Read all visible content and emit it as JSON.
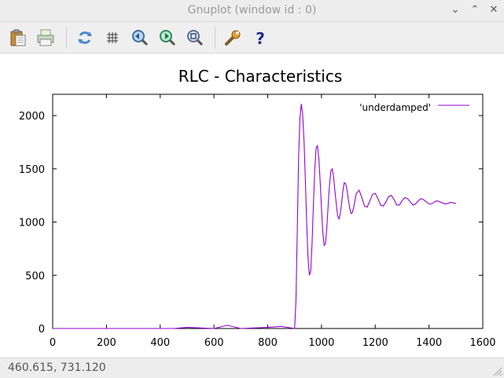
{
  "window": {
    "title": "Gnuplot (window id : 0)",
    "minimize_glyph": "⌄",
    "maximize_glyph": "⌃",
    "close_glyph": "✕"
  },
  "toolbar": {
    "icons": [
      "copy-clipboard-icon",
      "print-icon",
      "replot-icon",
      "grid-icon",
      "zoom-previous-icon",
      "zoom-next-icon",
      "autoscale-icon",
      "settings-icon",
      "help-icon"
    ],
    "help_glyph": "?"
  },
  "status": {
    "coords": "460.615,  731.120"
  },
  "colors": {
    "series": "#9400d3",
    "help": "#1d2c8f"
  },
  "chart_data": {
    "type": "line",
    "title": "RLC - Characteristics",
    "xlabel": "",
    "ylabel": "",
    "xlim": [
      0,
      1600
    ],
    "ylim": [
      0,
      2200
    ],
    "xticks": [
      0,
      200,
      400,
      600,
      800,
      1000,
      1200,
      1400,
      1600
    ],
    "yticks": [
      0,
      500,
      1000,
      1500,
      2000
    ],
    "grid": false,
    "legend_position": "top-right",
    "series": [
      {
        "name": "'underdamped'",
        "x": [
          0,
          100,
          200,
          300,
          400,
          450,
          500,
          600,
          650,
          700,
          800,
          850,
          900,
          905,
          910,
          915,
          920,
          925,
          930,
          935,
          940,
          945,
          950,
          955,
          960,
          965,
          970,
          975,
          980,
          985,
          990,
          995,
          1000,
          1005,
          1010,
          1015,
          1020,
          1025,
          1030,
          1035,
          1040,
          1045,
          1050,
          1055,
          1060,
          1065,
          1070,
          1075,
          1080,
          1085,
          1090,
          1095,
          1100,
          1105,
          1110,
          1115,
          1120,
          1125,
          1130,
          1140,
          1150,
          1160,
          1170,
          1180,
          1190,
          1200,
          1210,
          1220,
          1230,
          1240,
          1250,
          1260,
          1270,
          1280,
          1290,
          1300,
          1310,
          1320,
          1330,
          1340,
          1350,
          1360,
          1370,
          1380,
          1390,
          1400,
          1410,
          1420,
          1430,
          1440,
          1450,
          1460,
          1470,
          1480,
          1490,
          1500
        ],
        "y": [
          0,
          0,
          0,
          0,
          0,
          0,
          10,
          0,
          30,
          0,
          10,
          20,
          0,
          260,
          920,
          1620,
          1980,
          2110,
          2010,
          1760,
          1390,
          980,
          660,
          500,
          540,
          800,
          1160,
          1490,
          1690,
          1720,
          1600,
          1380,
          1120,
          900,
          780,
          800,
          950,
          1160,
          1350,
          1480,
          1500,
          1420,
          1290,
          1170,
          1060,
          1030,
          1080,
          1180,
          1300,
          1370,
          1360,
          1300,
          1210,
          1130,
          1080,
          1090,
          1140,
          1210,
          1270,
          1300,
          1230,
          1150,
          1140,
          1200,
          1260,
          1270,
          1220,
          1160,
          1150,
          1190,
          1240,
          1250,
          1210,
          1160,
          1160,
          1200,
          1230,
          1220,
          1190,
          1160,
          1170,
          1200,
          1220,
          1210,
          1190,
          1170,
          1170,
          1190,
          1200,
          1190,
          1180,
          1170,
          1175,
          1185,
          1180,
          1175
        ]
      }
    ]
  }
}
